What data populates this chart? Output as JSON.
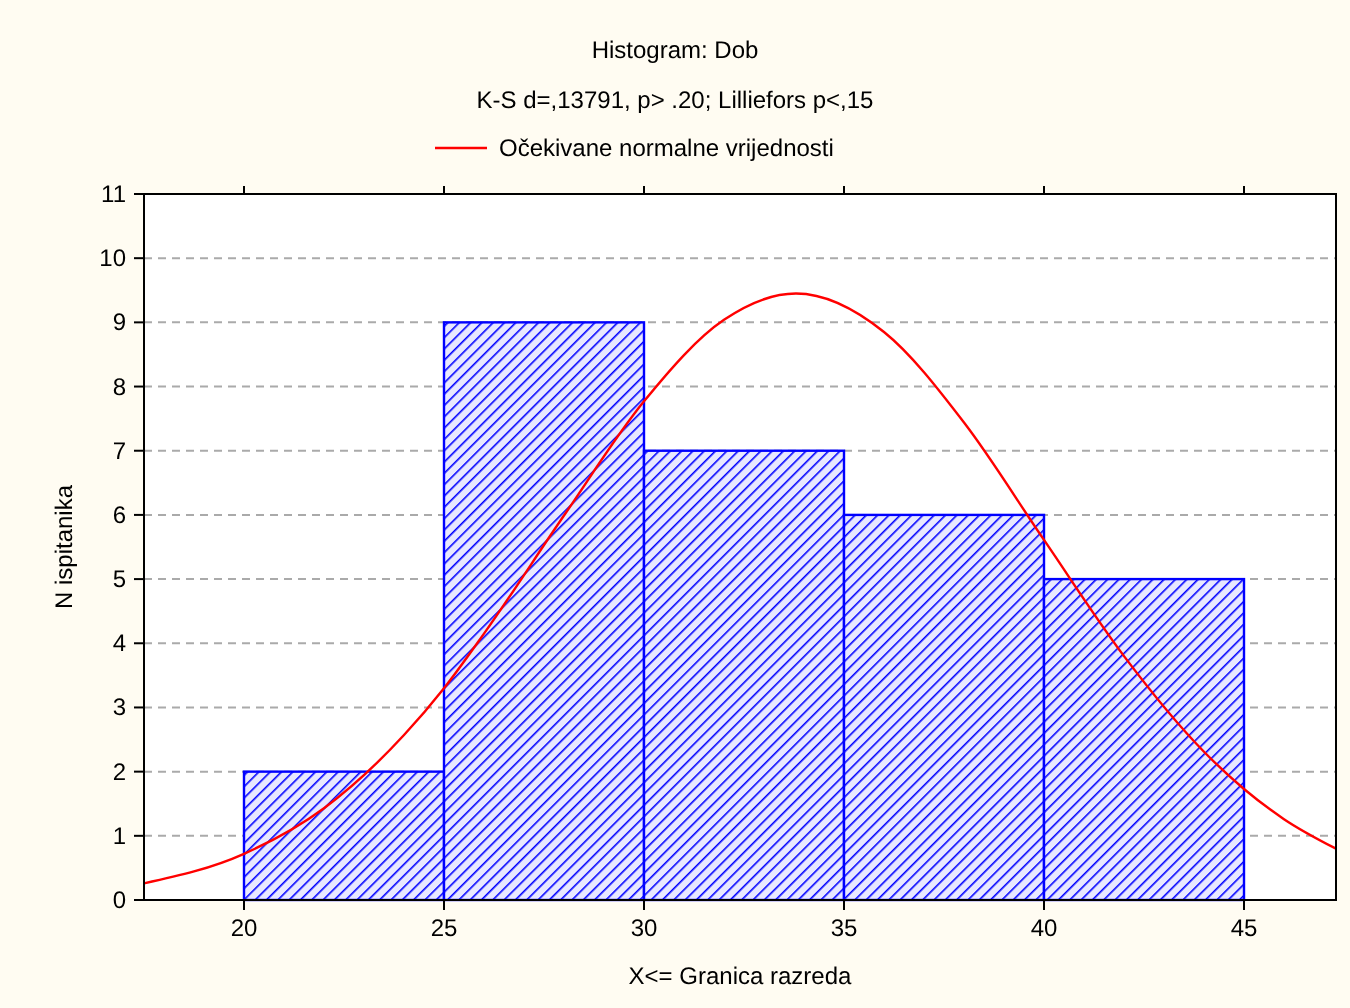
{
  "chart_data": {
    "type": "histogram",
    "title": "Histogram: Dob",
    "subtitle": "K-S d=,13791, p> .20; Lilliefors p<,15",
    "xlabel": "X<= Granica razreda",
    "ylabel": "N ispitanika",
    "bins": [
      20,
      25,
      30,
      35,
      40,
      45
    ],
    "values": [
      2,
      9,
      7,
      6,
      5
    ],
    "color": "#0000ff",
    "series": [
      {
        "type": "line",
        "name": "Očekivane normalne vrijednosti",
        "color": "#ff0000",
        "x": [
          17.5,
          20,
          22,
          24,
          25,
          26,
          28,
          30,
          32,
          33.8,
          36,
          38,
          40,
          42,
          44,
          45,
          46,
          47.3
        ],
        "values": [
          0.26,
          0.72,
          1.43,
          2.57,
          3.3,
          4.15,
          5.99,
          7.77,
          9.04,
          9.45,
          8.85,
          7.44,
          5.61,
          3.8,
          2.31,
          1.73,
          1.26,
          0.8
        ]
      }
    ],
    "xlim": [
      17.5,
      47.3
    ],
    "xticks": [
      20,
      25,
      30,
      35,
      40,
      45
    ],
    "ylim": [
      0,
      11
    ],
    "yticks": [
      0,
      1,
      2,
      3,
      4,
      5,
      6,
      7,
      8,
      9,
      10,
      11
    ],
    "grid": "y",
    "legend": "top"
  }
}
